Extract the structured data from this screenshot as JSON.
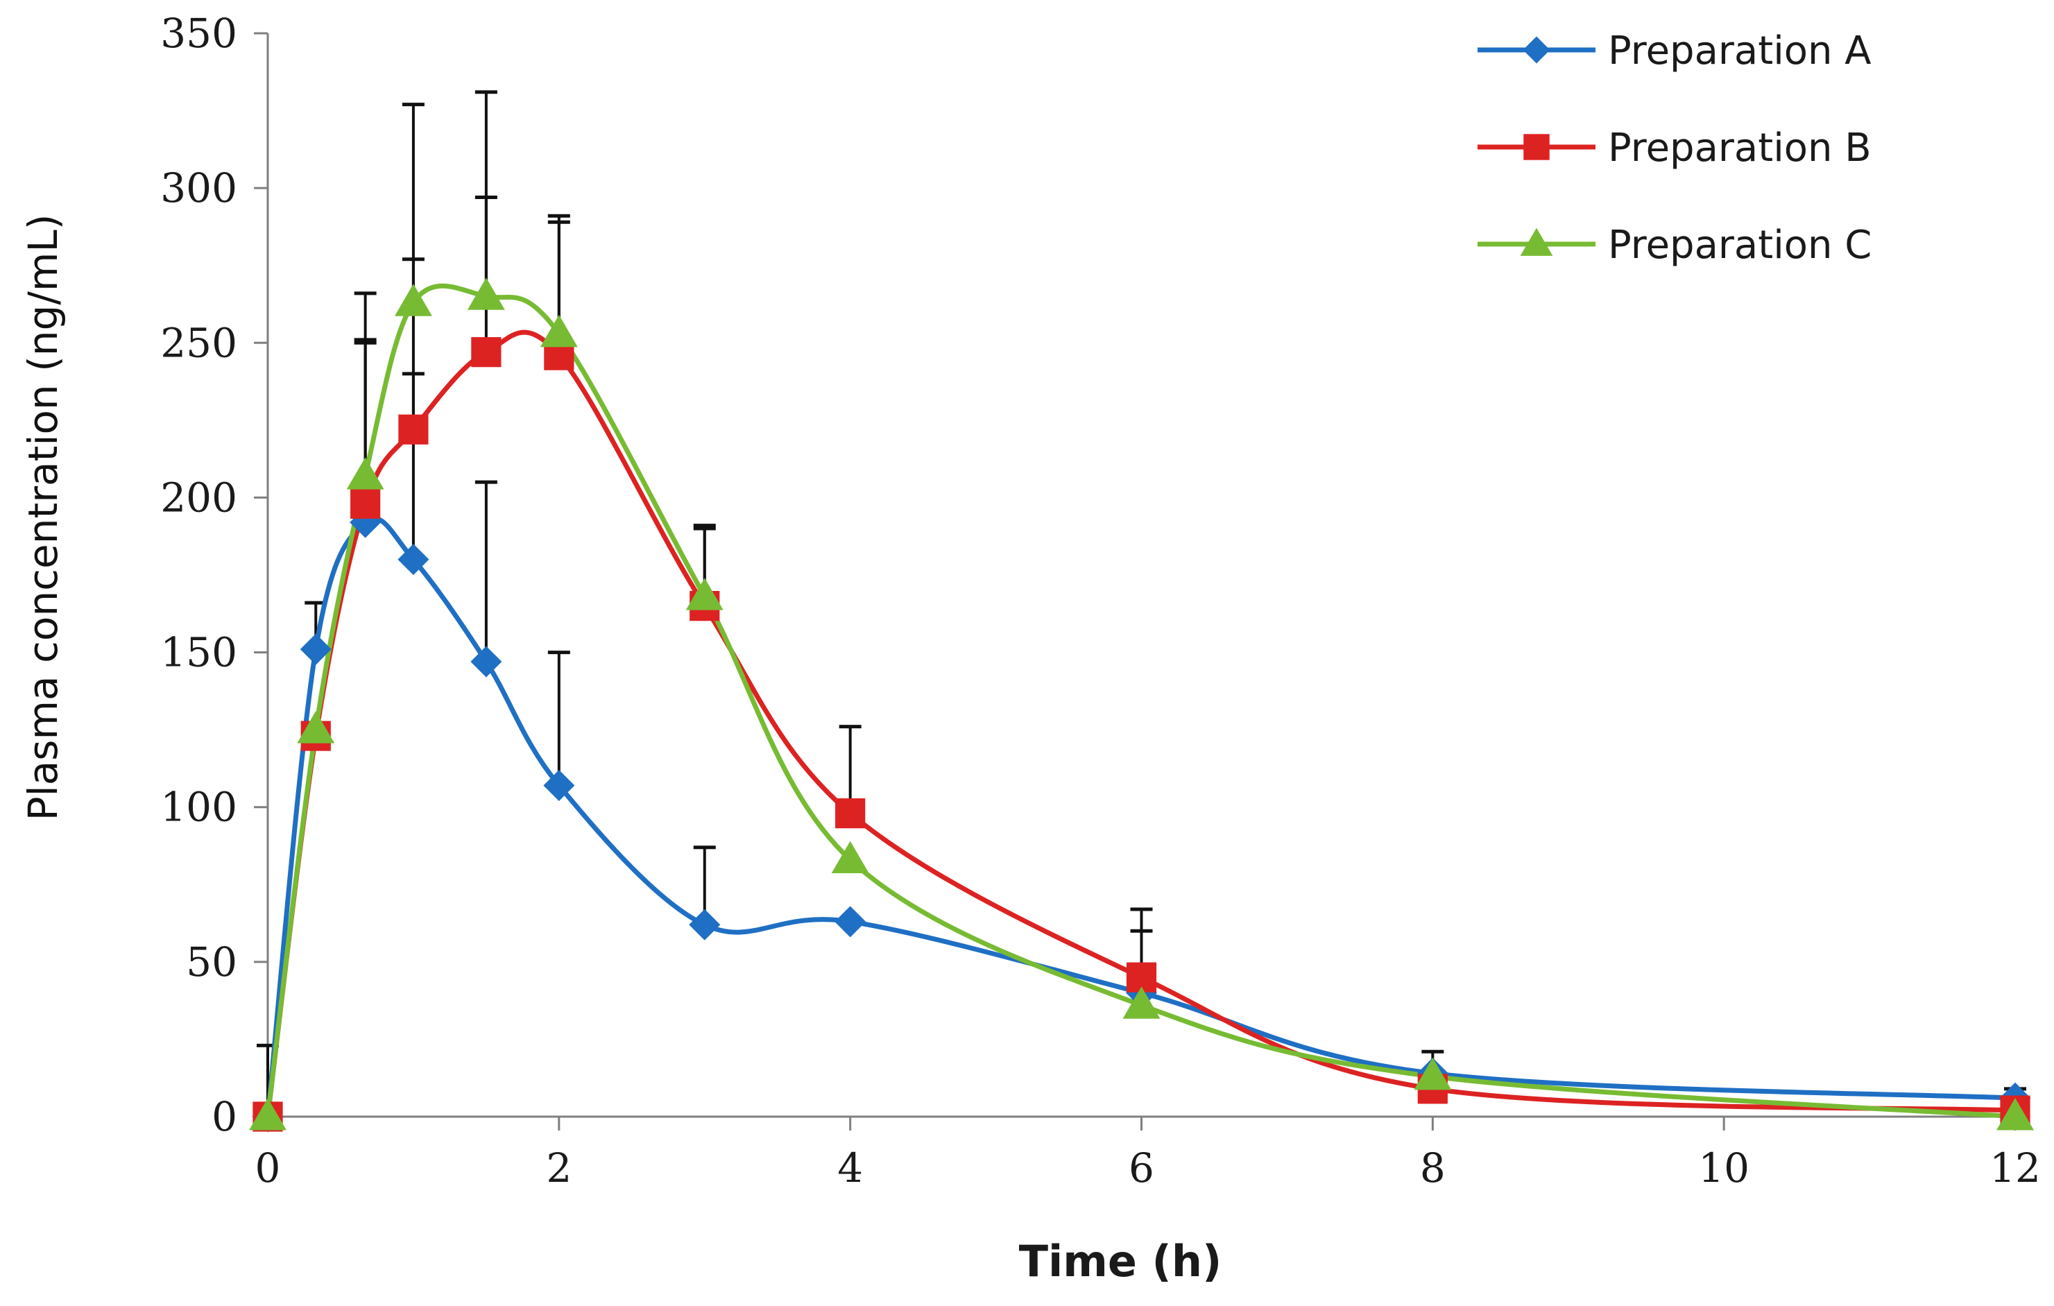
{
  "chart_data": {
    "type": "line",
    "title": "",
    "xlabel": "Time (h)",
    "ylabel": "Plasma concentration (ng/mL)",
    "xlim": [
      0,
      12
    ],
    "ylim": [
      0,
      350
    ],
    "xticks": [
      0,
      2,
      4,
      6,
      8,
      10,
      12
    ],
    "yticks": [
      0,
      50,
      100,
      150,
      200,
      250,
      300,
      350
    ],
    "grid": false,
    "legend_position": "top-right",
    "x": [
      0,
      0.33,
      0.67,
      1,
      1.5,
      2,
      3,
      4,
      6,
      8,
      12
    ],
    "series": [
      {
        "name": "Preparation A",
        "color": "#1f6fc4",
        "marker": "diamond",
        "values": [
          0,
          151,
          192,
          180,
          147,
          107,
          62,
          63,
          40,
          14,
          6
        ],
        "error": [
          23,
          15,
          58,
          97,
          58,
          43,
          25,
          0,
          0,
          0,
          3
        ]
      },
      {
        "name": "Preparation B",
        "color": "#dd2222",
        "marker": "square",
        "values": [
          0,
          123,
          198,
          222,
          247,
          246,
          165,
          98,
          45,
          9,
          2
        ],
        "error": [
          0,
          0,
          53,
          18,
          50,
          43,
          25,
          28,
          22,
          0,
          0
        ]
      },
      {
        "name": "Preparation C",
        "color": "#77bb33",
        "marker": "triangle",
        "values": [
          0,
          125,
          207,
          263,
          265,
          253,
          168,
          83,
          36,
          13,
          0
        ],
        "error": [
          0,
          0,
          59,
          64,
          66,
          38,
          23,
          0,
          24,
          8,
          0
        ]
      }
    ]
  }
}
